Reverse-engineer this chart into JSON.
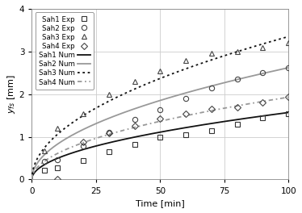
{
  "sah1_exp_x": [
    5,
    10,
    20,
    30,
    40,
    50,
    60,
    70,
    80,
    90,
    100
  ],
  "sah1_exp_y": [
    0.22,
    0.27,
    0.45,
    0.65,
    0.82,
    1.0,
    1.05,
    1.15,
    1.3,
    1.45,
    1.55
  ],
  "sah2_exp_x": [
    5,
    10,
    20,
    30,
    40,
    50,
    60,
    70,
    80,
    90,
    100
  ],
  "sah2_exp_y": [
    0.42,
    0.47,
    0.78,
    1.1,
    1.4,
    1.63,
    1.9,
    2.15,
    2.35,
    2.5,
    2.62
  ],
  "sah3_exp_x": [
    5,
    10,
    20,
    30,
    40,
    50,
    60,
    70,
    80,
    90,
    100
  ],
  "sah3_exp_y": [
    0.68,
    1.2,
    1.55,
    2.0,
    2.3,
    2.55,
    2.78,
    2.95,
    3.0,
    3.1,
    3.2
  ],
  "sah4_exp_x": [
    10,
    20,
    30,
    40,
    50,
    60,
    70,
    80,
    90,
    100
  ],
  "sah4_exp_y": [
    0.0,
    0.88,
    1.08,
    1.25,
    1.42,
    1.55,
    1.65,
    1.7,
    1.8,
    1.93
  ],
  "sah1_num_end": 1.57,
  "sah2_num_end": 2.62,
  "sah3_num_end": 3.35,
  "sah4_num_end": 1.93,
  "xlabel": "Time [min]",
  "ylabel": "$y_{fs}$ [mm]",
  "xlim": [
    0,
    100
  ],
  "ylim": [
    0,
    4
  ],
  "xticks": [
    0,
    25,
    50,
    75,
    100
  ],
  "yticks": [
    0,
    1,
    2,
    3,
    4
  ],
  "color_sah1": "#111111",
  "color_sah2": "#999999",
  "color_sah3": "#111111",
  "color_sah4": "#999999",
  "grid_color": "#cccccc",
  "background": "#ffffff"
}
